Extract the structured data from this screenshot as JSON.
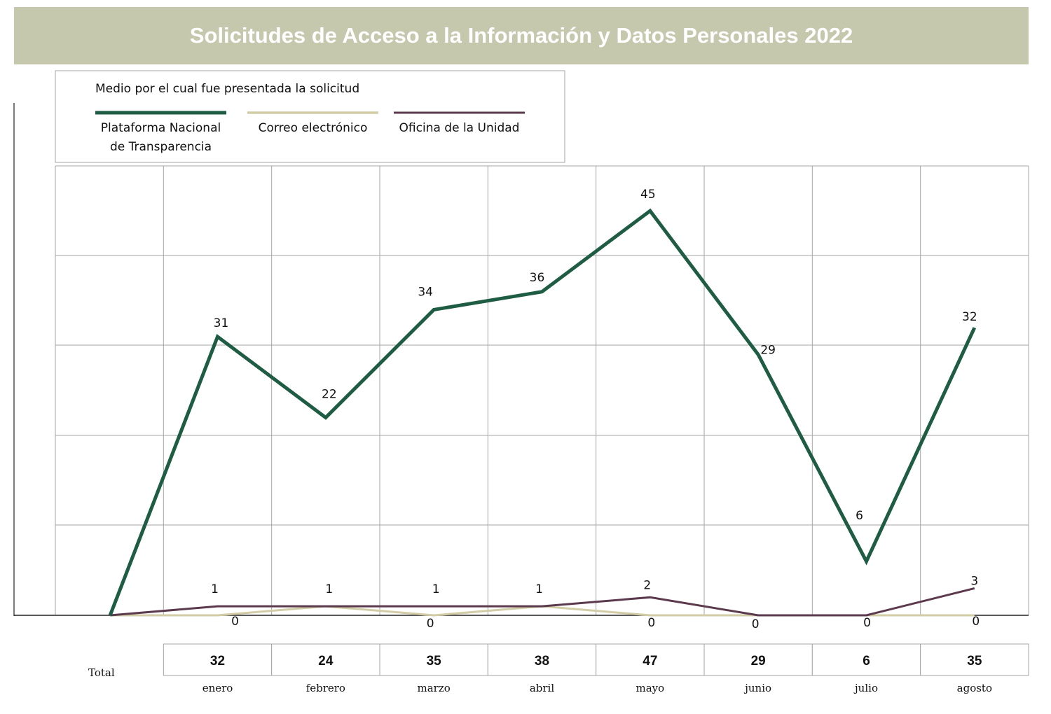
{
  "chart_data": {
    "type": "line",
    "title": "Solicitudes de Acceso a la Información y Datos Personales 2022",
    "legend_title": "Medio por el cual fue presentada la solicitud",
    "legend_position": "top-left",
    "categories": [
      "enero",
      "febrero",
      "marzo",
      "abril",
      "mayo",
      "junio",
      "julio",
      "agosto"
    ],
    "series": [
      {
        "name": "Plataforma Nacional de Transparencia",
        "name_lines": [
          "Plataforma Nacional",
          "de Transparencia"
        ],
        "color": "#1f5c44",
        "start": 0,
        "values": [
          31,
          22,
          34,
          36,
          45,
          29,
          6,
          32
        ]
      },
      {
        "name": "Correo electrónico",
        "color": "#d2cda6",
        "start": 0,
        "values": [
          0,
          1,
          0,
          1,
          0,
          0,
          0,
          0
        ],
        "labels": [
          "0",
          "",
          "0",
          "",
          "0",
          "0",
          "0",
          "0"
        ]
      },
      {
        "name": "Oficina de la Unidad",
        "color": "#5c3a4e",
        "start": 0,
        "values": [
          1,
          1,
          1,
          1,
          2,
          0,
          0,
          3
        ],
        "labels": [
          "1",
          "1",
          "1",
          "1",
          "2",
          "",
          "",
          "3"
        ]
      }
    ],
    "totals_label": "Total",
    "totals": [
      32,
      24,
      35,
      38,
      47,
      29,
      6,
      35
    ],
    "ylim": [
      0,
      50
    ],
    "grid": true
  }
}
